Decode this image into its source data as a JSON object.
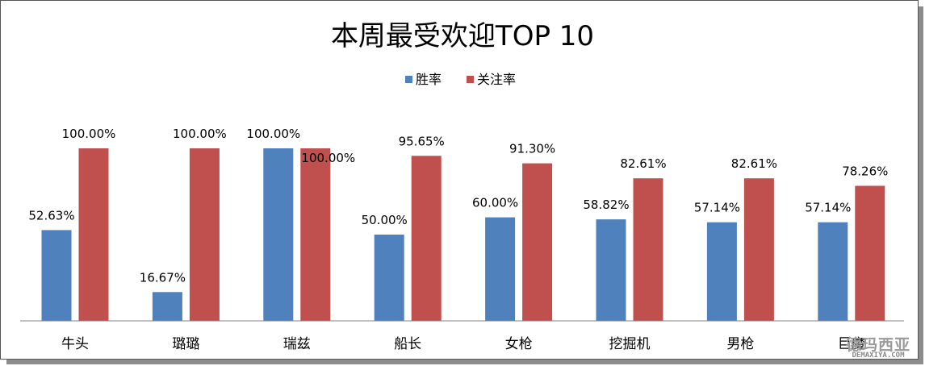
{
  "chart_data": {
    "type": "bar",
    "title": "本周最受欢迎TOP 10",
    "categories": [
      "牛头",
      "璐璐",
      "瑞兹",
      "船长",
      "女枪",
      "挖掘机",
      "男枪",
      "巨魔"
    ],
    "series": [
      {
        "name": "胜率",
        "color": "#4f81bd",
        "values": [
          52.63,
          16.67,
          100.0,
          50.0,
          60.0,
          58.82,
          57.14,
          57.14
        ],
        "labels": [
          "52.63%",
          "16.67%",
          "100.00%",
          "50.00%",
          "60.00%",
          "58.82%",
          "57.14%",
          "57.14%"
        ]
      },
      {
        "name": "关注率",
        "color": "#c0504d",
        "values": [
          100.0,
          100.0,
          100.0,
          95.65,
          91.3,
          82.61,
          82.61,
          78.26
        ],
        "labels": [
          "100.00%",
          "100.00%",
          "100.00%",
          "95.65%",
          "91.30%",
          "82.61%",
          "82.61%",
          "78.26%"
        ]
      }
    ],
    "ylim": [
      0,
      100
    ],
    "grid": false,
    "legend": "top-center"
  },
  "watermark": {
    "text": "德玛西亚",
    "url": "DEMAXIYA.COM"
  }
}
